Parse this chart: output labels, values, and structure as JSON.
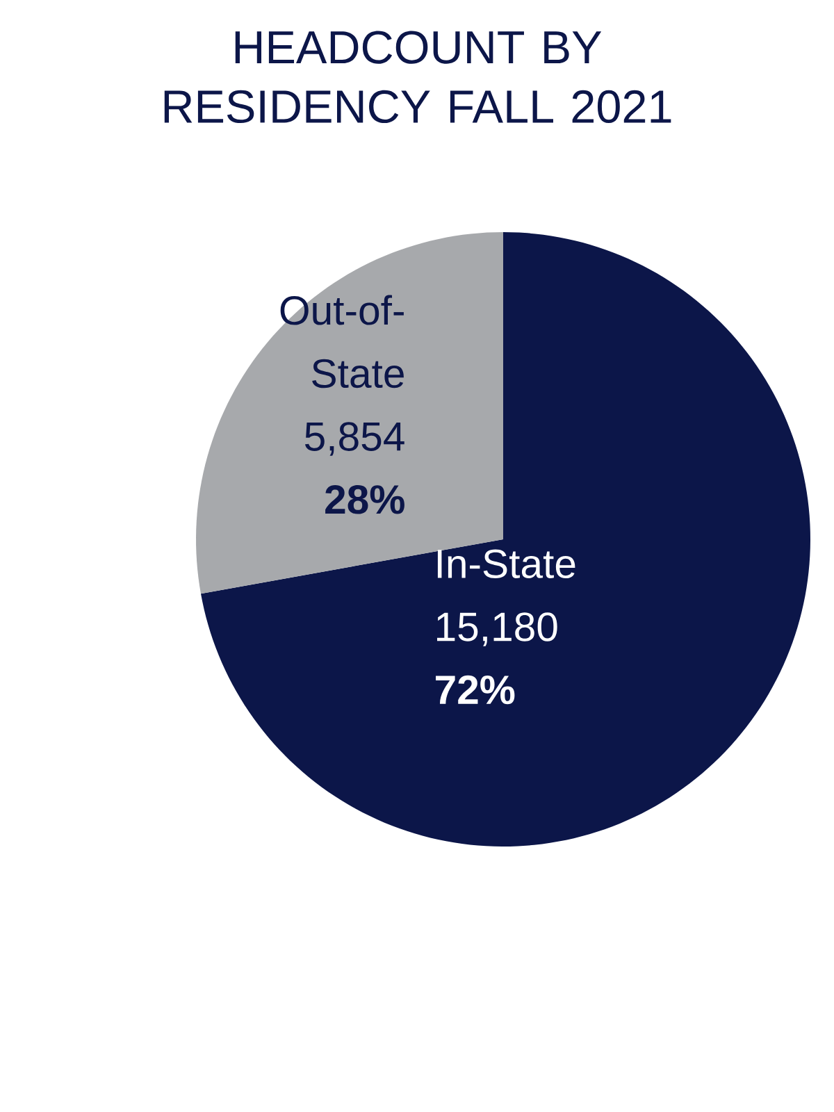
{
  "chart_data": {
    "type": "pie",
    "title": "HEADCOUNT BY RESIDENCY FALL 2021",
    "categories": [
      "In-State",
      "Out-of-State"
    ],
    "values": [
      15180,
      5854
    ],
    "value_labels": [
      "15,180",
      "5,854"
    ],
    "annotations": [
      "72%",
      "28%"
    ],
    "colors": [
      "#0c1649",
      "#a7a9ac"
    ]
  }
}
